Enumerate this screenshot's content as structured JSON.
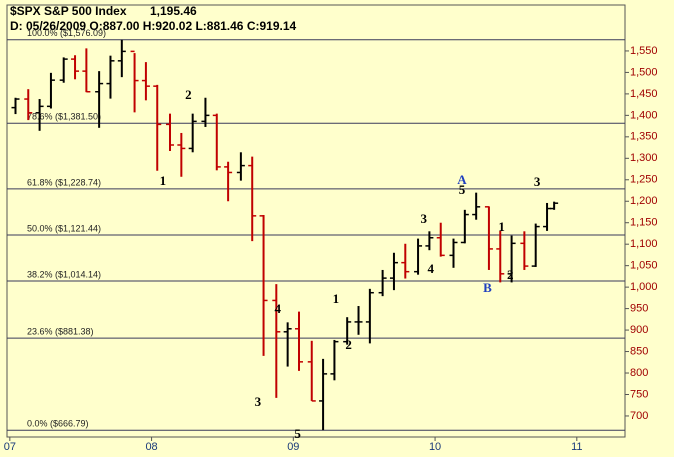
{
  "chart_data": {
    "type": "ohlc",
    "title": "$SPX S&P 500 Index",
    "last": "1,195.46",
    "info": "D: 05/26/2009 O:887.00 H:920.02 L:881.46 C:919.14",
    "x": [
      2007.04,
      2007.13,
      2007.21,
      2007.29,
      2007.38,
      2007.46,
      2007.54,
      2007.63,
      2007.71,
      2007.79,
      2007.88,
      2007.96,
      2008.04,
      2008.13,
      2008.21,
      2008.29,
      2008.38,
      2008.46,
      2008.54,
      2008.63,
      2008.71,
      2008.79,
      2008.88,
      2008.96,
      2009.04,
      2009.13,
      2009.21,
      2009.29,
      2009.38,
      2009.46,
      2009.54,
      2009.63,
      2009.71,
      2009.79,
      2009.88,
      2009.96,
      2010.04,
      2010.13,
      2010.21,
      2010.29,
      2010.38,
      2010.46,
      2010.54,
      2010.63,
      2010.71,
      2010.79,
      2010.84
    ],
    "open": [
      1418,
      1438,
      1406,
      1421,
      1482,
      1531,
      1503,
      1455,
      1474,
      1527,
      1549,
      1481,
      1468,
      1379,
      1331,
      1323,
      1386,
      1400,
      1280,
      1267,
      1283,
      1166,
      969,
      896,
      903,
      826,
      735,
      798,
      873,
      919,
      919,
      987,
      1021,
      1057,
      1036,
      1096,
      1115,
      1074,
      1104,
      1169,
      1187,
      1089,
      1031,
      1102,
      1049,
      1141,
      1183
    ],
    "high": [
      1441,
      1461,
      1438,
      1499,
      1535,
      1540,
      1556,
      1503,
      1539,
      1576,
      1545,
      1524,
      1471,
      1404,
      1359,
      1404,
      1441,
      1404,
      1292,
      1314,
      1304,
      1168,
      1007,
      918,
      943,
      875,
      833,
      877,
      930,
      956,
      996,
      1040,
      1080,
      1101,
      1113,
      1130,
      1150,
      1113,
      1180,
      1220,
      1188,
      1131,
      1120,
      1130,
      1148,
      1196,
      1199
    ],
    "low": [
      1403,
      1389,
      1364,
      1416,
      1476,
      1484,
      1454,
      1371,
      1439,
      1489,
      1407,
      1435,
      1271,
      1317,
      1257,
      1314,
      1373,
      1272,
      1200,
      1248,
      1107,
      840,
      742,
      815,
      805,
      735,
      667,
      783,
      866,
      889,
      869,
      979,
      993,
      1020,
      1029,
      1086,
      1071,
      1045,
      1102,
      1157,
      1040,
      1011,
      1011,
      1040,
      1047,
      1131,
      1180
    ],
    "close": [
      1438,
      1406,
      1421,
      1482,
      1531,
      1503,
      1455,
      1474,
      1527,
      1549,
      1481,
      1468,
      1379,
      1331,
      1323,
      1386,
      1400,
      1280,
      1267,
      1283,
      1166,
      969,
      896,
      903,
      826,
      735,
      798,
      873,
      919,
      919,
      987,
      1021,
      1057,
      1036,
      1096,
      1115,
      1074,
      1104,
      1169,
      1187,
      1089,
      1031,
      1102,
      1049,
      1141,
      1183,
      1195.46
    ],
    "up_color": "#000000",
    "down_color": "#c00000",
    "xlim": [
      2006.98,
      2011.34
    ],
    "xticks": [
      {
        "value": 2007,
        "label": "07"
      },
      {
        "value": 2008,
        "label": "08"
      },
      {
        "value": 2009,
        "label": "09"
      },
      {
        "value": 2010,
        "label": "10"
      },
      {
        "value": 2011,
        "label": "11"
      }
    ],
    "ylim": [
      651,
      1657
    ],
    "yticks": [
      700,
      750,
      800,
      850,
      900,
      950,
      {
        "value": 1000,
        "label": "1,000"
      },
      {
        "value": 1050,
        "label": "1,050"
      },
      {
        "value": 1100,
        "label": "1,100"
      },
      {
        "value": 1150,
        "label": "1,150"
      },
      {
        "value": 1200,
        "label": "1,200"
      },
      {
        "value": 1250,
        "label": "1,250"
      },
      {
        "value": 1300,
        "label": "1,300"
      },
      {
        "value": 1350,
        "label": "1,350"
      },
      {
        "value": 1400,
        "label": "1,400"
      },
      {
        "value": 1450,
        "label": "1,450"
      },
      {
        "value": 1500,
        "label": "1,500"
      },
      {
        "value": 1550,
        "label": "1,550"
      }
    ],
    "level_color": "#3a3a5a",
    "levels": [
      {
        "value": 1576.09,
        "label": "100.0%  ($1,576.09)"
      },
      {
        "value": 1381.5,
        "label": "78.6%  ($1,381.50)"
      },
      {
        "value": 1228.74,
        "label": "61.8%  ($1,228.74)"
      },
      {
        "value": 1121.44,
        "label": "50.0%  ($1,121.44)"
      },
      {
        "value": 1014.14,
        "label": "38.2%  ($1,014.14)"
      },
      {
        "value": 881.38,
        "label": "23.6%  ($881.38)"
      },
      {
        "value": 666.79,
        "label": "0.0%  ($666.79)"
      }
    ],
    "annotations": [
      {
        "text": "2",
        "x": 2008.26,
        "y": 1445,
        "color": "#000000"
      },
      {
        "text": "1",
        "x": 2008.08,
        "y": 1245,
        "color": "#000000"
      },
      {
        "text": "4",
        "x": 2008.89,
        "y": 947,
        "color": "#000000"
      },
      {
        "text": "3",
        "x": 2008.75,
        "y": 730,
        "color": "#000000"
      },
      {
        "text": "5",
        "x": 2009.03,
        "y": 656,
        "color": "#000000"
      },
      {
        "text": "1",
        "x": 2009.3,
        "y": 970,
        "color": "#000000"
      },
      {
        "text": "2",
        "x": 2009.39,
        "y": 863,
        "color": "#000000"
      },
      {
        "text": "3",
        "x": 2009.92,
        "y": 1156,
        "color": "#000000"
      },
      {
        "text": "4",
        "x": 2009.97,
        "y": 1040,
        "color": "#000000"
      },
      {
        "text": "A",
        "x": 2010.19,
        "y": 1247,
        "color": "#1f3fbf"
      },
      {
        "text": "5",
        "x": 2010.19,
        "y": 1224,
        "color": "#000000"
      },
      {
        "text": "B",
        "x": 2010.37,
        "y": 996,
        "color": "#1f3fbf"
      },
      {
        "text": "1",
        "x": 2010.47,
        "y": 1138,
        "color": "#000000"
      },
      {
        "text": "2",
        "x": 2010.53,
        "y": 1026,
        "color": "#000000"
      },
      {
        "text": "3",
        "x": 2010.72,
        "y": 1243,
        "color": "#000000"
      }
    ]
  }
}
